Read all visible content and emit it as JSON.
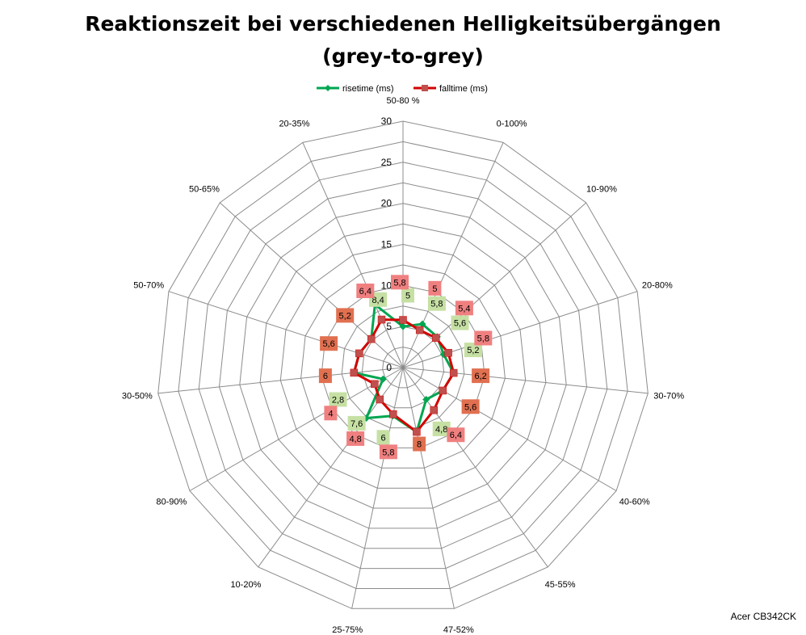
{
  "chart_data": {
    "type": "radar",
    "title_line1": "Reaktionszeit bei verschiedenen Helligkeitsübergängen",
    "title_line2": "(grey-to-grey)",
    "categories": [
      "50-80 %",
      "0-100%",
      "10-90%",
      "20-80%",
      "30-70%",
      "40-60%",
      "45-55%",
      "47-52%",
      "25-75%",
      "10-20%",
      "80-90%",
      "30-50%",
      "50-70%",
      "50-65%",
      "20-35%"
    ],
    "radial_ticks": [
      "0",
      "5",
      "10",
      "15",
      "20",
      "25",
      "30"
    ],
    "rmax": 30,
    "grid": true,
    "legend_position": "top",
    "series": [
      {
        "name": "risetime (ms)",
        "color": "#00a651",
        "label_bg": "#c6e0a4",
        "values": [
          5,
          5.8,
          5.6,
          5.2,
          6.2,
          5.6,
          4.8,
          8,
          6,
          7.6,
          2.8,
          6,
          5.6,
          5.2,
          8.4
        ],
        "labels": [
          "5",
          "5,8",
          "5,6",
          "5,2",
          "6,2",
          "5,6",
          "4,8",
          "8",
          "6",
          "7,6",
          "2,8",
          "6",
          "5,6",
          "5,2",
          "8,4"
        ]
      },
      {
        "name": "falltime (ms)",
        "color": "#d40000",
        "label_bg": "#f08080",
        "values": [
          5.8,
          5,
          5.4,
          5.8,
          6.2,
          5.6,
          6.4,
          8,
          5.8,
          4.8,
          4,
          6,
          5.6,
          5.2,
          6.4
        ],
        "labels": [
          "5,8",
          "5",
          "5,4",
          "5,8",
          "6,2",
          "5,6",
          "6,4",
          "8",
          "5,8",
          "4,8",
          "4",
          "6",
          "5,6",
          "5,2",
          "6,4"
        ]
      }
    ],
    "overlap_label_bg": "#e07050"
  },
  "watermark": "Acer CB342CK"
}
